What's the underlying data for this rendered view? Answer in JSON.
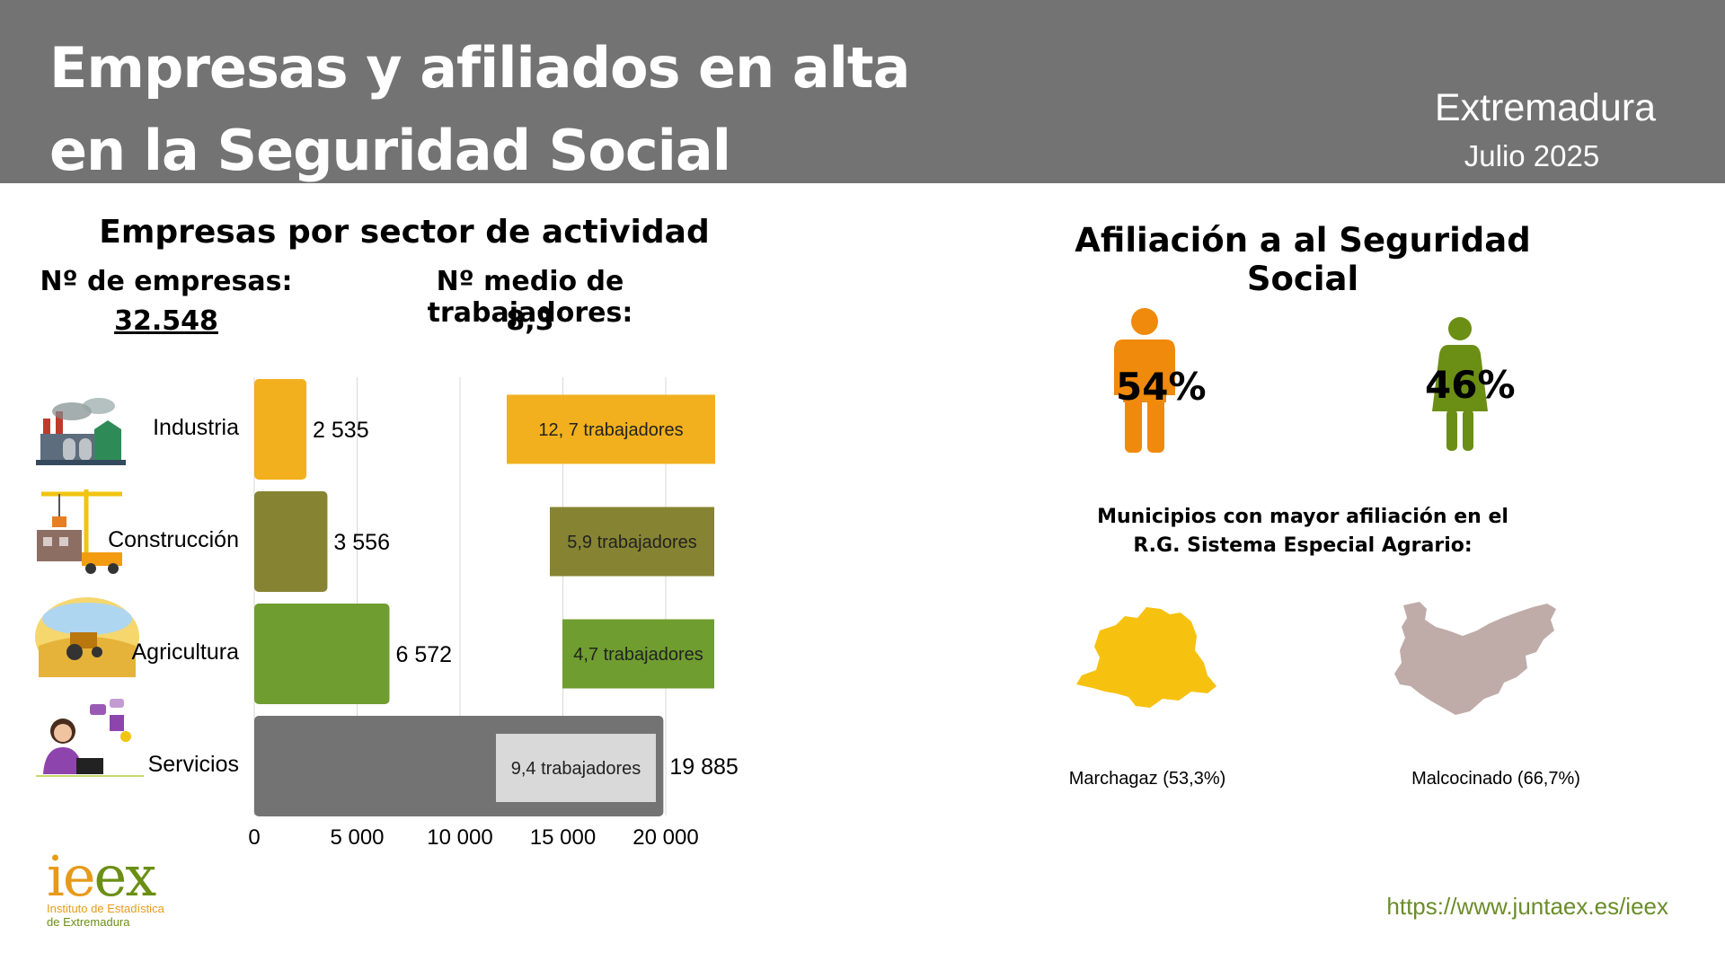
{
  "header": {
    "title_line1": "Empresas y afiliados en alta",
    "title_line2": "en la Seguridad Social",
    "region": "Extremadura",
    "period": "Julio 2025"
  },
  "empresas": {
    "section_title": "Empresas por sector de actividad",
    "total_label": "Nº de empresas:",
    "total_value": "32.548",
    "avg_label": "Nº medio de trabajadores:",
    "avg_value": "8,3"
  },
  "chart_data": {
    "type": "bar",
    "orientation": "horizontal",
    "categories": [
      "Industria",
      "Construcción",
      "Agricultura",
      "Servicios"
    ],
    "values": [
      2535,
      3556,
      6572,
      19885
    ],
    "value_labels": [
      "2 535",
      "3 556",
      "6 572",
      "19 885"
    ],
    "bar_colors": [
      "#f2b01e",
      "#868432",
      "#6f9d30",
      "#737373"
    ],
    "avg_workers_labels": [
      "12, 7 trabajadores",
      "5,9 trabajadores",
      "4,7 trabajadores",
      "9,4 trabajadores"
    ],
    "avg_box_colors": [
      "#f2b01e",
      "#868432",
      "#6f9d30",
      "#d9d9d9"
    ],
    "xlim": [
      0,
      20000
    ],
    "xticks": [
      0,
      5000,
      10000,
      15000,
      20000
    ],
    "xtick_labels": [
      "0",
      "5 000",
      "10 000",
      "15 000",
      "20 000"
    ],
    "grid": true
  },
  "afiliacion": {
    "section_title": "Afiliación a al Seguridad Social",
    "men_pct": "54%",
    "women_pct": "46%",
    "men_color": "#f08a0c",
    "women_color": "#6b8f14",
    "municipios_title_line1": "Municipios con mayor afiliación en el",
    "municipios_title_line2": "R.G. Sistema Especial Agrario:",
    "municipios": [
      {
        "label": "Marchagaz (53,3%)",
        "color": "#f7c10f"
      },
      {
        "label": "Malcocinado (66,7%)",
        "color": "#bfaca8"
      }
    ]
  },
  "footer": {
    "logo_text": "ieex",
    "logo_line1": "Instituto de Estadística",
    "logo_line2": "de Extremadura",
    "url": "https://www.juntaex.es/ieex"
  }
}
